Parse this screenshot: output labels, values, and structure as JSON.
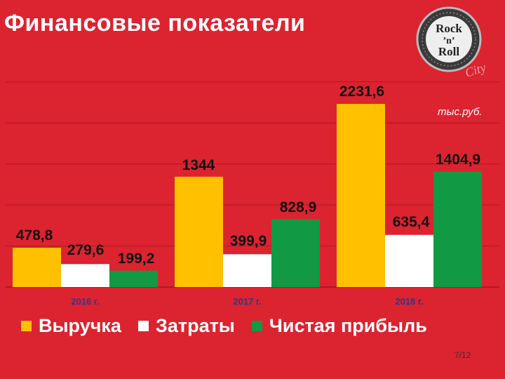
{
  "title": "Финансовые показатели",
  "unit_label": "тыс.руб.",
  "logo": {
    "line1": "Rock",
    "line2": "’n’",
    "line3": "Roll",
    "accent": "City"
  },
  "page_number": "7/12",
  "colors": {
    "background": "#dc2330",
    "revenue": "#ffc000",
    "costs": "#ffffff",
    "profit": "#119944",
    "category_text": "#2a3a8c"
  },
  "chart_data": {
    "type": "bar",
    "title": "Финансовые показатели",
    "unit": "тыс.руб.",
    "categories": [
      "2016 г.",
      "2017 г.",
      "2018 г."
    ],
    "series": [
      {
        "name": "Выручка",
        "values": [
          478.8,
          1344,
          2231.6
        ],
        "labels": [
          "478,8",
          "1344",
          "2231,6"
        ]
      },
      {
        "name": "Затраты",
        "values": [
          279.6,
          399.9,
          635.4
        ],
        "labels": [
          "279,6",
          "399,9",
          "635,4"
        ]
      },
      {
        "name": "Чистая прибыль",
        "values": [
          199.2,
          828.9,
          1404.9
        ],
        "labels": [
          "199,2",
          "828,9",
          "1404,9"
        ]
      }
    ],
    "ylim": [
      0,
      2500
    ],
    "grid": true,
    "legend_position": "bottom"
  }
}
